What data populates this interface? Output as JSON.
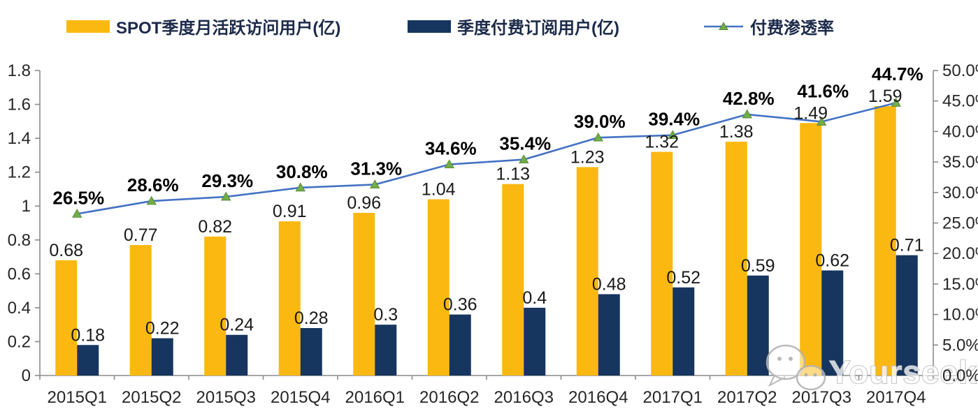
{
  "legend": {
    "mau_label": "SPOT季度月活跃访问用户(亿)",
    "subs_label": "季度付费订阅用户(亿)",
    "penetration_label": "付费渗透率"
  },
  "colors": {
    "mau_bar": "#FBB811",
    "subs_bar": "#16355F",
    "line": "#4472C4",
    "marker": "#70AD47",
    "marker_edge": "#548235",
    "axis": "#8C8C8C",
    "tick_label": "#262626",
    "value_label": "#1A1A1A",
    "pct_label": "#000000",
    "watermark": "#B3B3B3"
  },
  "watermark": {
    "text": "Yourseeker",
    "icon": "wechat-icon"
  },
  "chart_data": {
    "type": "bar+line combo",
    "title": "",
    "categories": [
      "2015Q1",
      "2015Q2",
      "2015Q3",
      "2015Q4",
      "2016Q1",
      "2016Q2",
      "2016Q3",
      "2016Q4",
      "2017Q1",
      "2017Q2",
      "2017Q3",
      "2017Q4"
    ],
    "series": [
      {
        "name": "SPOT季度月活跃访问用户(亿)",
        "type": "bar",
        "axis": "left",
        "values": [
          0.68,
          0.77,
          0.82,
          0.91,
          0.96,
          1.04,
          1.13,
          1.23,
          1.32,
          1.38,
          1.49,
          1.59
        ],
        "labels": [
          "0.68",
          "0.77",
          "0.82",
          "0.91",
          "0.96",
          "1.04",
          "1.13",
          "1.23",
          "1.32",
          "1.38",
          "1.49",
          "1.59"
        ]
      },
      {
        "name": "季度付费订阅用户(亿)",
        "type": "bar",
        "axis": "left",
        "values": [
          0.18,
          0.22,
          0.24,
          0.28,
          0.3,
          0.36,
          0.4,
          0.48,
          0.52,
          0.59,
          0.62,
          0.71
        ],
        "labels": [
          "0.18",
          "0.22",
          "0.24",
          "0.28",
          "0.3",
          "0.36",
          "0.4",
          "0.48",
          "0.52",
          "0.59",
          "0.62",
          "0.71"
        ]
      },
      {
        "name": "付费渗透率",
        "type": "line",
        "axis": "right",
        "values": [
          26.5,
          28.6,
          29.3,
          30.8,
          31.3,
          34.6,
          35.4,
          39.0,
          39.4,
          42.8,
          41.6,
          44.7
        ],
        "labels": [
          "26.5%",
          "28.6%",
          "29.3%",
          "30.8%",
          "31.3%",
          "34.6%",
          "35.4%",
          "39.0%",
          "39.4%",
          "42.8%",
          "41.6%",
          "44.7%"
        ]
      }
    ],
    "left_axis": {
      "min": 0,
      "max": 1.8,
      "step": 0.2,
      "ticks": [
        "0",
        "0.2",
        "0.4",
        "0.6",
        "0.8",
        "1",
        "1.2",
        "1.4",
        "1.6",
        "1.8"
      ]
    },
    "right_axis": {
      "min": 0,
      "max": 50,
      "step": 5,
      "ticks": [
        "0.0%",
        "5.0%",
        "10.0%",
        "15.0%",
        "20.0%",
        "25.0%",
        "30.0%",
        "35.0%",
        "40.0%",
        "45.0%",
        "50.0%"
      ]
    },
    "grid": false,
    "legend_position": "top"
  }
}
